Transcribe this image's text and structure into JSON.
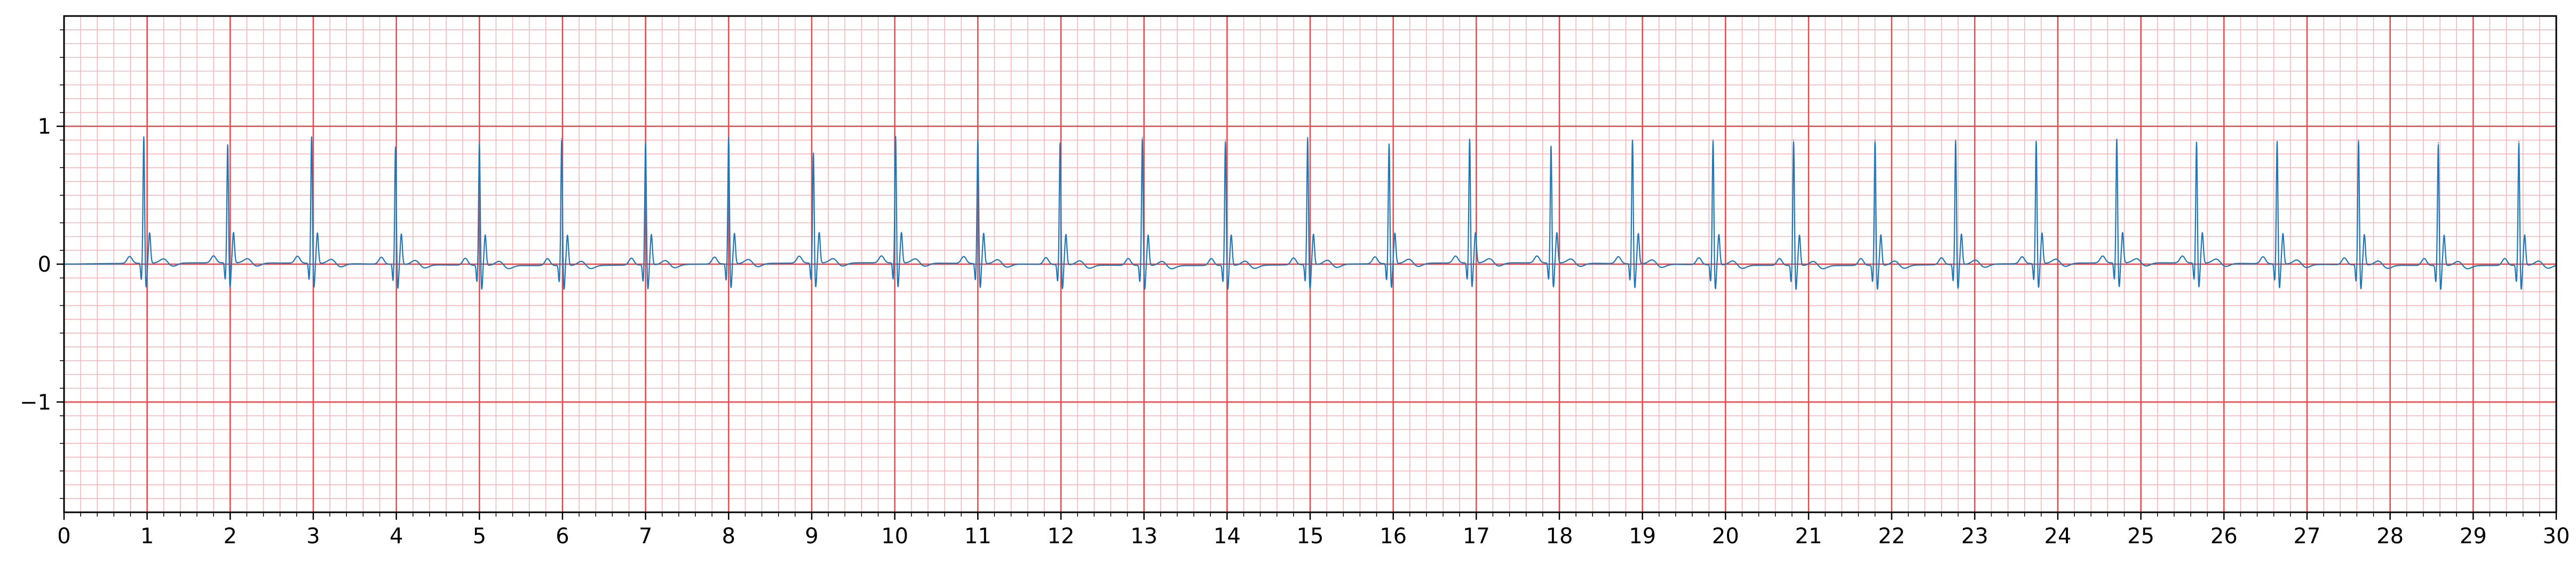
{
  "chart_data": {
    "type": "line",
    "title": "",
    "xlabel": "",
    "ylabel": "",
    "xlim": [
      0,
      30
    ],
    "ylim": [
      -1.8,
      1.8
    ],
    "x_ticks": [
      0,
      1,
      2,
      3,
      4,
      5,
      6,
      7,
      8,
      9,
      10,
      11,
      12,
      13,
      14,
      15,
      16,
      17,
      18,
      19,
      20,
      21,
      22,
      23,
      24,
      25,
      26,
      27,
      28,
      29,
      30
    ],
    "x_tick_labels": [
      "0",
      "1",
      "2",
      "3",
      "4",
      "5",
      "6",
      "7",
      "8",
      "9",
      "10",
      "11",
      "12",
      "13",
      "14",
      "15",
      "16",
      "17",
      "18",
      "19",
      "20",
      "21",
      "22",
      "23",
      "24",
      "25",
      "26",
      "27",
      "28",
      "29",
      "30"
    ],
    "y_ticks": [
      -1,
      0,
      1
    ],
    "y_tick_labels": [
      "−1",
      "0",
      "1"
    ],
    "grid": "on",
    "grid_major_x_step": 1,
    "grid_major_y_step": 1,
    "grid_minor_x_step": 0.2,
    "grid_minor_y_step": 0.1,
    "colors": {
      "trace": "#1f77b4",
      "grid_major": "#e8474c",
      "grid_minor": "#f7b3b6",
      "axes": "#000000"
    },
    "series": [
      {
        "beats": [
          {
            "t": 0.96,
            "r": 0.92
          },
          {
            "t": 1.97,
            "r": 0.86
          },
          {
            "t": 2.98,
            "r": 0.92
          },
          {
            "t": 3.99,
            "r": 0.85
          },
          {
            "t": 5.0,
            "r": 0.88
          },
          {
            "t": 5.99,
            "r": 0.91
          },
          {
            "t": 7.0,
            "r": 0.89
          },
          {
            "t": 8.0,
            "r": 0.92
          },
          {
            "t": 9.02,
            "r": 0.8
          },
          {
            "t": 10.01,
            "r": 0.92
          },
          {
            "t": 11.0,
            "r": 0.9
          },
          {
            "t": 11.99,
            "r": 0.88
          },
          {
            "t": 12.98,
            "r": 0.92
          },
          {
            "t": 13.98,
            "r": 0.9
          },
          {
            "t": 14.97,
            "r": 0.92
          },
          {
            "t": 15.95,
            "r": 0.87
          },
          {
            "t": 16.92,
            "r": 0.9
          },
          {
            "t": 17.9,
            "r": 0.85
          },
          {
            "t": 18.88,
            "r": 0.9
          },
          {
            "t": 19.85,
            "r": 0.9
          },
          {
            "t": 20.82,
            "r": 0.9
          },
          {
            "t": 21.8,
            "r": 0.9
          },
          {
            "t": 22.77,
            "r": 0.9
          },
          {
            "t": 23.74,
            "r": 0.89
          },
          {
            "t": 24.71,
            "r": 0.9
          },
          {
            "t": 25.67,
            "r": 0.88
          },
          {
            "t": 26.64,
            "r": 0.89
          },
          {
            "t": 27.62,
            "r": 0.9
          },
          {
            "t": 28.58,
            "r": 0.88
          },
          {
            "t": 29.55,
            "r": 0.89
          }
        ]
      }
    ]
  }
}
